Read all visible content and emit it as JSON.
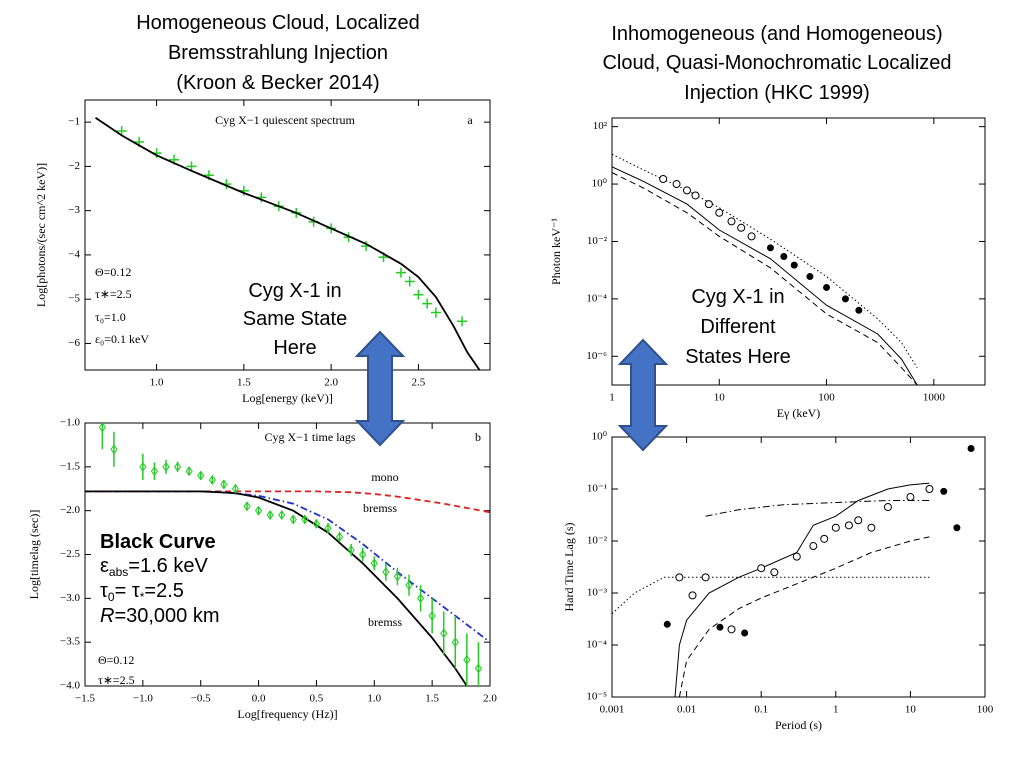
{
  "slide": {
    "left_heading": [
      "Homogeneous Cloud, Localized",
      "Bremsstrahlung Injection",
      "(Kroon & Becker 2014)"
    ],
    "right_heading": [
      "Inhomogeneous (and Homogeneous)",
      "Cloud, Quasi-Monochromatic Localized",
      "Injection (HKC 1999)"
    ],
    "left_note": [
      "Cyg X-1 in",
      "Same State",
      "Here"
    ],
    "right_note": [
      "Cyg X-1 in",
      "Different",
      "States Here"
    ],
    "black_curve": {
      "title": "Black Curve",
      "lines": [
        [
          {
            "text": "ε"
          },
          {
            "text": "abs",
            "sub": true
          },
          {
            "text": "=1.6 keV"
          }
        ],
        [
          {
            "text": "τ"
          },
          {
            "text": "0",
            "sub": true
          },
          {
            "text": "= τ"
          },
          {
            "text": "*",
            "sub": true
          },
          {
            "text": "=2.5"
          }
        ],
        [
          {
            "text": "R",
            "italic": true
          },
          {
            "text": "=30,000 km"
          }
        ]
      ]
    }
  },
  "chart_data": [
    {
      "type": "line",
      "title": "Cyg X−1 quiescent spectrum",
      "panel": "a",
      "x_label": "Log[energy (keV)]",
      "y_label": "Log[photons/(sec cm^2 keV)]",
      "annotations": [
        "Θ=0.12",
        "τ∗=2.5",
        "τ₀=1.0",
        "ε₀=0.1 keV"
      ],
      "xlim": [
        0.59,
        2.91
      ],
      "ylim": [
        -6.6,
        -0.5
      ],
      "xticks": [
        {
          "value": 1,
          "label": "1.0"
        },
        {
          "value": 1.5,
          "label": "1.5"
        },
        {
          "value": 2,
          "label": "2.0"
        },
        {
          "value": 2.5,
          "label": "2.5"
        }
      ],
      "yticks": [
        {
          "value": -1,
          "label": "−1"
        },
        {
          "value": -2,
          "label": "−2"
        },
        {
          "value": -3,
          "label": "−3"
        },
        {
          "value": -4,
          "label": "−4"
        },
        {
          "value": -5,
          "label": "−5"
        },
        {
          "value": -6,
          "label": "−6"
        }
      ],
      "series": [
        {
          "color": "#22cc22",
          "style": "markers",
          "marker": "plus",
          "x": [
            0.8,
            0.9,
            1.0,
            1.1,
            1.2,
            1.3,
            1.4,
            1.5,
            1.6,
            1.7,
            1.8,
            1.9,
            2.0,
            2.1,
            2.2,
            2.3,
            2.4,
            2.45,
            2.5,
            2.55,
            2.6,
            2.75
          ],
          "values": [
            -1.2,
            -1.45,
            -1.7,
            -1.85,
            -2.0,
            -2.2,
            -2.4,
            -2.55,
            -2.7,
            -2.9,
            -3.05,
            -3.25,
            -3.4,
            -3.6,
            -3.8,
            -4.05,
            -4.4,
            -4.6,
            -4.9,
            -5.1,
            -5.3,
            -5.5
          ]
        },
        {
          "color": "#000000",
          "style": "solid",
          "x": [
            0.65,
            0.8,
            1.0,
            1.2,
            1.5,
            1.8,
            2.0,
            2.2,
            2.4,
            2.5,
            2.6,
            2.7,
            2.78,
            2.85
          ],
          "values": [
            -0.9,
            -1.3,
            -1.75,
            -2.1,
            -2.6,
            -3.05,
            -3.4,
            -3.75,
            -4.2,
            -4.5,
            -4.95,
            -5.6,
            -6.2,
            -6.6
          ]
        }
      ]
    },
    {
      "type": "line",
      "title": "Cyg X−1 time lags",
      "panel": "b",
      "x_label": "Log[frequency (Hz)]",
      "y_label": "Log[timelag (sec)]",
      "annotations": [
        "Θ=0.12",
        "τ∗=2.5"
      ],
      "xlim": [
        -1.5,
        2.0
      ],
      "ylim": [
        -4.0,
        -1.0
      ],
      "xticks": [
        {
          "value": -1.5,
          "label": "−1.5"
        },
        {
          "value": -1,
          "label": "−1.0"
        },
        {
          "value": -0.5,
          "label": "−0.5"
        },
        {
          "value": 0,
          "label": "0.0"
        },
        {
          "value": 0.5,
          "label": "0.5"
        },
        {
          "value": 1,
          "label": "1.0"
        },
        {
          "value": 1.5,
          "label": "1.5"
        },
        {
          "value": 2,
          "label": "2.0"
        }
      ],
      "yticks": [
        {
          "value": -1,
          "label": "−1.0"
        },
        {
          "value": -1.5,
          "label": "−1.5"
        },
        {
          "value": -2,
          "label": "−2.0"
        },
        {
          "value": -2.5,
          "label": "−2.5"
        },
        {
          "value": -3,
          "label": "−3.0"
        },
        {
          "value": -3.5,
          "label": "−3.5"
        },
        {
          "value": -4,
          "label": "−4.0"
        }
      ],
      "series": [
        {
          "name": "mono",
          "color": "#e02020",
          "style": "dashed",
          "x": [
            -1.5,
            -0.5,
            0.0,
            0.5,
            0.8,
            1.0,
            1.2,
            1.4,
            1.6,
            1.8,
            2.0
          ],
          "values": [
            -1.78,
            -1.78,
            -1.78,
            -1.78,
            -1.79,
            -1.81,
            -1.84,
            -1.88,
            -1.92,
            -1.97,
            -2.02
          ]
        },
        {
          "name": "bremss",
          "color": "#2030d0",
          "style": "dashdot",
          "x": [
            -1.5,
            -0.5,
            -0.3,
            0.0,
            0.3,
            0.6,
            0.9,
            1.2,
            1.5,
            1.8,
            2.0
          ],
          "values": [
            -1.78,
            -1.78,
            -1.79,
            -1.83,
            -1.92,
            -2.1,
            -2.38,
            -2.7,
            -3.0,
            -3.3,
            -3.5
          ]
        },
        {
          "name": "bremss",
          "color": "#000000",
          "style": "solid",
          "x": [
            -1.5,
            -0.5,
            -0.2,
            0.0,
            0.3,
            0.6,
            0.9,
            1.2,
            1.5,
            1.7,
            1.8
          ],
          "values": [
            -1.78,
            -1.78,
            -1.8,
            -1.85,
            -2.0,
            -2.25,
            -2.6,
            -3.0,
            -3.45,
            -3.8,
            -4.0
          ]
        },
        {
          "color": "#22cc22",
          "style": "markers",
          "marker": "diamond",
          "x": [
            -1.35,
            -1.25,
            -1.0,
            -0.9,
            -0.8,
            -0.7,
            -0.6,
            -0.5,
            -0.4,
            -0.3,
            -0.2,
            -0.1,
            0.0,
            0.1,
            0.2,
            0.3,
            0.4,
            0.5,
            0.6,
            0.7,
            0.8,
            0.9,
            1.0,
            1.1,
            1.2,
            1.3,
            1.4,
            1.5,
            1.6,
            1.7,
            1.8,
            1.9
          ],
          "values": [
            -1.05,
            -1.3,
            -1.5,
            -1.55,
            -1.5,
            -1.5,
            -1.55,
            -1.6,
            -1.65,
            -1.7,
            -1.75,
            -1.95,
            -2.0,
            -2.05,
            -2.05,
            -2.1,
            -2.1,
            -2.15,
            -2.2,
            -2.3,
            -2.45,
            -2.5,
            -2.6,
            -2.7,
            -2.75,
            -2.85,
            -3.0,
            -3.2,
            -3.4,
            -3.5,
            -3.7,
            -3.8
          ],
          "errors": [
            0.25,
            0.2,
            0.15,
            0.1,
            0.08,
            0.06,
            0.05,
            0.05,
            0.05,
            0.05,
            0.05,
            0.05,
            0.05,
            0.05,
            0.05,
            0.05,
            0.05,
            0.05,
            0.06,
            0.06,
            0.07,
            0.08,
            0.08,
            0.1,
            0.1,
            0.12,
            0.15,
            0.2,
            0.25,
            0.3,
            0.3,
            0.3
          ]
        }
      ]
    },
    {
      "type": "line",
      "log_x": true,
      "log_y": true,
      "x_label": "Eγ (keV)",
      "y_label": "Photon keV⁻¹",
      "xlim": [
        1,
        3000
      ],
      "ylim": [
        1e-07,
        200
      ],
      "xticks": [
        1,
        10,
        100,
        1000
      ],
      "yticks": [
        {
          "value": 100,
          "label": "10²"
        },
        {
          "value": 1,
          "label": "10⁰"
        },
        {
          "value": 0.01,
          "label": "10⁻²"
        },
        {
          "value": 0.0001,
          "label": "10⁻⁴"
        },
        {
          "value": 1e-06,
          "label": "10⁻⁶"
        }
      ],
      "series": [
        {
          "color": "#000000",
          "style": "dotted",
          "x": [
            1,
            2,
            5,
            10,
            30,
            100,
            300,
            500,
            700
          ],
          "values": [
            11,
            3,
            0.6,
            0.15,
            0.012,
            0.0006,
            2e-05,
            3e-06,
            4e-07
          ]
        },
        {
          "color": "#000000",
          "style": "solid",
          "x": [
            1,
            2,
            5,
            10,
            30,
            100,
            300,
            500,
            700
          ],
          "values": [
            4,
            1.2,
            0.2,
            0.025,
            0.0025,
            6e-05,
            6e-06,
            8e-07,
            1e-07
          ]
        },
        {
          "color": "#000000",
          "style": "dashed",
          "x": [
            1,
            2,
            5,
            10,
            30,
            100,
            300,
            500,
            700
          ],
          "values": [
            2.5,
            0.7,
            0.1,
            0.015,
            0.0012,
            3e-05,
            3e-06,
            4e-07,
            1e-07
          ]
        },
        {
          "color": "#000000",
          "style": "markers",
          "marker": "open-circle",
          "x": [
            3,
            4,
            5,
            6,
            8,
            10,
            13,
            16,
            20
          ],
          "values": [
            1.5,
            1,
            0.6,
            0.4,
            0.2,
            0.1,
            0.05,
            0.03,
            0.015
          ]
        },
        {
          "color": "#000000",
          "style": "markers",
          "marker": "filled-circle",
          "x": [
            30,
            40,
            50,
            70,
            100,
            150,
            200
          ],
          "values": [
            0.006,
            0.003,
            0.0015,
            0.0006,
            0.00025,
            0.0001,
            4e-05
          ]
        }
      ]
    },
    {
      "type": "line",
      "log_x": true,
      "log_y": true,
      "x_label": "Period (s)",
      "y_label": "Hard Time Lag (s)",
      "xlim": [
        0.001,
        100
      ],
      "ylim": [
        1e-05,
        1
      ],
      "xticks": [
        0.001,
        0.01,
        0.1,
        1,
        10,
        100
      ],
      "yticks": [
        {
          "value": 1,
          "label": "10⁰"
        },
        {
          "value": 0.1,
          "label": "10⁻¹"
        },
        {
          "value": 0.01,
          "label": "10⁻²"
        },
        {
          "value": 0.001,
          "label": "10⁻³"
        },
        {
          "value": 0.0001,
          "label": "10⁻⁴"
        },
        {
          "value": 1e-05,
          "label": "10⁻⁵"
        }
      ],
      "series": [
        {
          "color": "#000000",
          "style": "dotted",
          "x": [
            0.001,
            0.002,
            0.005,
            0.01,
            1,
            18
          ],
          "values": [
            0.0004,
            0.001,
            0.002,
            0.002,
            0.002,
            0.002
          ]
        },
        {
          "color": "#000000",
          "style": "solid",
          "x": [
            0.007,
            0.008,
            0.01,
            0.02,
            0.05,
            0.1,
            0.3,
            0.5,
            1,
            2,
            5,
            10,
            18
          ],
          "values": [
            1e-05,
            0.0001,
            0.0003,
            0.001,
            0.002,
            0.003,
            0.006,
            0.02,
            0.03,
            0.06,
            0.1,
            0.12,
            0.13
          ]
        },
        {
          "color": "#000000",
          "style": "dashed",
          "x": [
            0.008,
            0.01,
            0.02,
            0.05,
            0.1,
            0.3,
            1,
            3,
            10,
            18
          ],
          "values": [
            1e-05,
            5e-05,
            0.0002,
            0.0005,
            0.0008,
            0.0015,
            0.003,
            0.006,
            0.01,
            0.012
          ]
        },
        {
          "color": "#000000",
          "style": "dashdot",
          "x": [
            0.018,
            0.05,
            0.2,
            1,
            5,
            18
          ],
          "values": [
            0.03,
            0.04,
            0.05,
            0.055,
            0.06,
            0.06
          ]
        },
        {
          "color": "#000000",
          "style": "markers",
          "marker": "open-circle",
          "x": [
            0.008,
            0.012,
            0.018,
            0.04,
            0.1,
            0.15,
            0.3,
            0.5,
            0.7,
            1,
            1.5,
            2,
            3,
            5,
            10,
            18
          ],
          "values": [
            0.002,
            0.0009,
            0.002,
            0.0002,
            0.003,
            0.0025,
            0.005,
            0.008,
            0.011,
            0.018,
            0.02,
            0.025,
            0.018,
            0.045,
            0.07,
            0.1
          ]
        },
        {
          "color": "#000000",
          "style": "markers",
          "marker": "filled-circle",
          "x": [
            0.0055,
            0.028,
            0.06,
            28,
            42,
            65
          ],
          "values": [
            0.00025,
            0.00022,
            0.00017,
            0.09,
            0.018,
            0.6
          ]
        }
      ]
    }
  ]
}
